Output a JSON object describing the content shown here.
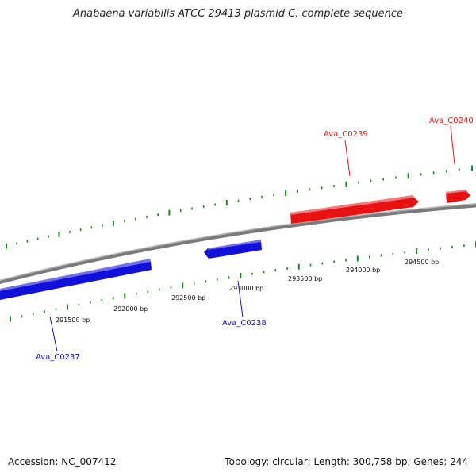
{
  "title": "Anabaena variabilis ATCC 29413 plasmid C, complete sequence",
  "accession_label": "Accession: NC_007412",
  "topology_label": "Topology: circular; Length: 300,758 bp; Genes: 244",
  "colors": {
    "forward_gene": "#ee1111",
    "reverse_gene": "#1111dd",
    "backbone": "#8a8a8a",
    "ticks": "#1a8a1a"
  },
  "ticks": [
    {
      "label": "291500 bp"
    },
    {
      "label": "292000 bp"
    },
    {
      "label": "292500 bp"
    },
    {
      "label": "293000 bp"
    },
    {
      "label": "293500 bp"
    },
    {
      "label": "294000 bp"
    },
    {
      "label": "294500 bp"
    }
  ],
  "genes": [
    {
      "name": "Ava_C0237",
      "strand": "reverse"
    },
    {
      "name": "Ava_C0238",
      "strand": "reverse"
    },
    {
      "name": "Ava_C0239",
      "strand": "forward"
    },
    {
      "name": "Ava_C0240",
      "strand": "forward"
    }
  ]
}
